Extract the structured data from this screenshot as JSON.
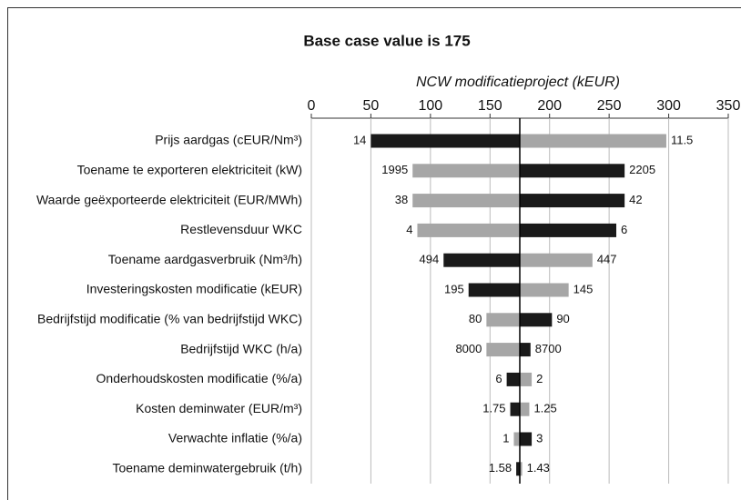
{
  "chart_data": {
    "type": "tornado",
    "title": "Base case value is 175",
    "axis_label": "NCW modificatieproject (kEUR)",
    "base": 175,
    "xlim": [
      0,
      350
    ],
    "xticks": [
      0,
      50,
      100,
      150,
      200,
      250,
      300,
      350
    ],
    "grid": true,
    "categories": [
      "Prijs aardgas (cEUR/Nm³)",
      "Toename te exporteren elektriciteit (kW)",
      "Waarde geëxporteerde elektriciteit (EUR/MWh)",
      "Restlevensduur WKC",
      "Toename aardgasverbruik (Nm³/h)",
      "Investeringskosten modificatie (kEUR)",
      "Bedrijfstijd modificatie (% van bedrijfstijd WKC)",
      "Bedrijfstijd WKC (h/a)",
      "Onderhoudskosten modificatie (%/a)",
      "Kosten deminwater (EUR/m³)",
      "Verwachte inflatie (%/a)",
      "Toename deminwatergebruik (t/h)"
    ],
    "low": [
      50,
      85,
      85,
      89,
      111,
      132,
      147,
      147,
      164,
      167,
      170,
      172
    ],
    "high": [
      298,
      263,
      263,
      256,
      236,
      216,
      202,
      184,
      185,
      183,
      185,
      177
    ],
    "low_labels": [
      "14",
      "1995",
      "38",
      "4",
      "494",
      "195",
      "80",
      "8000",
      "6",
      "1.75",
      "1",
      "1.58"
    ],
    "high_labels": [
      "11.5",
      "2205",
      "42",
      "6",
      "447",
      "145",
      "90",
      "8700",
      "2",
      "1.25",
      "3",
      "1.43"
    ],
    "low_colors": [
      "#1a1a1a",
      "#a6a6a6",
      "#a6a6a6",
      "#a6a6a6",
      "#1a1a1a",
      "#1a1a1a",
      "#a6a6a6",
      "#a6a6a6",
      "#1a1a1a",
      "#1a1a1a",
      "#a6a6a6",
      "#1a1a1a"
    ],
    "high_colors": [
      "#a6a6a6",
      "#1a1a1a",
      "#1a1a1a",
      "#1a1a1a",
      "#a6a6a6",
      "#a6a6a6",
      "#1a1a1a",
      "#1a1a1a",
      "#a6a6a6",
      "#a6a6a6",
      "#1a1a1a",
      "#a6a6a6"
    ]
  }
}
